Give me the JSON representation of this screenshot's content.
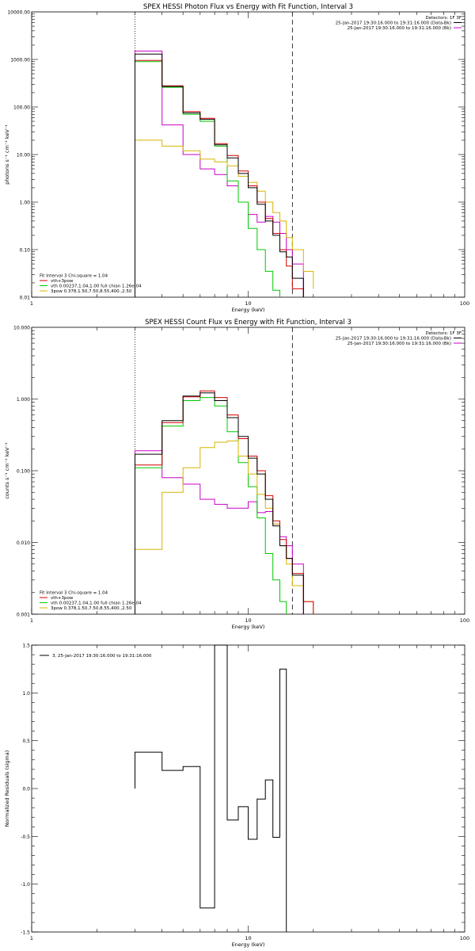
{
  "colors": {
    "data_black": "#000000",
    "total_red": "#d40000",
    "vth_green": "#00c800",
    "pow_yellow": "#d8b400",
    "bk_magenta": "#c800c8"
  },
  "chart_data": [
    {
      "type": "line",
      "title": "SPEX HESSI Photon Flux vs Energy with Fit Function, Interval 3",
      "xlabel": "Energy (keV)",
      "ylabel": "photons s⁻¹ cm⁻² keV⁻¹",
      "xscale": "log",
      "yscale": "log",
      "xlim": [
        1,
        100
      ],
      "ylim": [
        0.01,
        10000
      ],
      "xticks": [
        1,
        10,
        100
      ],
      "xticklabels": [
        "1",
        "10",
        "100"
      ],
      "yticks": [
        0.01,
        0.1,
        1,
        10,
        100,
        1000,
        10000
      ],
      "yticklabels": [
        "0.01",
        "0.10",
        "1.00",
        "10.00",
        "100.00",
        "1000.00",
        "10000.00"
      ],
      "vlines": [
        {
          "x": 3.0,
          "style": "dotted"
        },
        {
          "x": 16.0,
          "style": "dashed"
        }
      ],
      "legend_tr": {
        "header": "Detectors: 1F 3F",
        "lines": [
          {
            "text": "25-Jan-2017 19:30:16.000 to 19:31:16.000 (Data-Bk)",
            "color": "#000000"
          },
          {
            "text": "25-Jan-2017 19:30:16.000 to 19:31:16.000 (Bk)",
            "color": "#c800c8"
          }
        ]
      },
      "legend_bl": {
        "header": "Fit Interval  3   Chi-square = 1.04",
        "lines": [
          {
            "text": "vth+3pow",
            "color": "#d40000"
          },
          {
            "text": "vth 0.00237,1.04,1.00  full chian 1.26e-04",
            "color": "#00c800"
          },
          {
            "text": "3pow 0.378,1.50,7.50,8.55,400.,2.50",
            "color": "#d8b400"
          }
        ]
      },
      "bin_edges": [
        3.0,
        4.0,
        5.0,
        6.0,
        7.0,
        8.0,
        9.0,
        10.0,
        11.0,
        12.0,
        13.0,
        14.0,
        15.0,
        16.0,
        18.0,
        20.0
      ],
      "series": [
        {
          "key": "bk",
          "color": "#c800c8",
          "values": [
            1500,
            42,
            10,
            5.0,
            3.8,
            2.2,
            1.0,
            0.55,
            0.38,
            0.5,
            0.38,
            0.22,
            0.1,
            0.05,
            null
          ]
        },
        {
          "key": "vth",
          "color": "#00c800",
          "values": [
            900,
            260,
            70,
            50,
            15,
            2.8,
            1.0,
            0.28,
            0.1,
            0.035,
            0.014,
            null,
            null,
            null,
            null
          ]
        },
        {
          "key": "pow",
          "color": "#d8b400",
          "values": [
            20,
            15,
            12,
            8.0,
            7.0,
            5.8,
            3.5,
            2.6,
            1.7,
            1.0,
            0.6,
            0.4,
            0.18,
            0.1,
            0.035,
            0.015
          ]
        },
        {
          "key": "total",
          "color": "#d40000",
          "values": [
            950,
            280,
            80,
            58,
            17,
            9.5,
            4.5,
            2.2,
            1.0,
            0.45,
            0.22,
            0.1,
            0.045,
            0.015,
            null
          ]
        },
        {
          "key": "data",
          "color": "#000000",
          "values": [
            1300,
            270,
            75,
            55,
            16,
            8.5,
            4.0,
            2.0,
            0.9,
            0.4,
            0.2,
            0.09,
            0.07,
            0.025,
            null
          ]
        }
      ]
    },
    {
      "type": "line",
      "title": "SPEX HESSI Count Flux vs Energy with Fit Function, Interval 3",
      "xlabel": "Energy (keV)",
      "ylabel": "counts s⁻¹ cm⁻² keV⁻¹",
      "xscale": "log",
      "yscale": "log",
      "xlim": [
        1,
        100
      ],
      "ylim": [
        0.001,
        10
      ],
      "xticks": [
        1,
        10,
        100
      ],
      "xticklabels": [
        "1",
        "10",
        "100"
      ],
      "yticks": [
        0.001,
        0.01,
        0.1,
        1,
        10
      ],
      "yticklabels": [
        "0.001",
        "0.010",
        "0.100",
        "1.000",
        "10.000"
      ],
      "vlines": [
        {
          "x": 3.0,
          "style": "dotted"
        },
        {
          "x": 16.0,
          "style": "dashed"
        }
      ],
      "legend_tr": {
        "header": "Detectors: 1F 3F",
        "lines": [
          {
            "text": "25-Jan-2017 19:30:16.000 to 19:31:16.000 (Data-Bk)",
            "color": "#000000"
          },
          {
            "text": "25-Jan-2017 19:30:16.000 to 19:31:16.000 (Bk)",
            "color": "#c800c8"
          }
        ]
      },
      "legend_bl": {
        "header": "Fit Interval  3   Chi-square = 1.04",
        "lines": [
          {
            "text": "vth+3pow",
            "color": "#d40000"
          },
          {
            "text": "vth 0.00237,1.04,1.00  full chian 1.26e-04",
            "color": "#00c800"
          },
          {
            "text": "3pow 0.378,1.50,7.50,8.55,400.,2.50",
            "color": "#d8b400"
          }
        ]
      },
      "bin_edges": [
        3.0,
        4.0,
        5.0,
        6.0,
        7.0,
        8.0,
        9.0,
        10.0,
        11.0,
        12.0,
        13.0,
        14.0,
        15.0,
        16.0,
        18.0,
        20.0
      ],
      "series": [
        {
          "key": "bk",
          "color": "#c800c8",
          "values": [
            0.19,
            0.08,
            0.065,
            0.04,
            0.034,
            0.03,
            0.03,
            0.037,
            0.026,
            0.027,
            0.018,
            0.012,
            0.009,
            0.005,
            null
          ]
        },
        {
          "key": "vth",
          "color": "#00c800",
          "values": [
            0.11,
            0.42,
            0.95,
            1.05,
            0.8,
            0.35,
            0.13,
            0.06,
            0.022,
            0.007,
            0.003,
            0.0015,
            null,
            null,
            null
          ]
        },
        {
          "key": "pow",
          "color": "#d8b400",
          "values": [
            0.008,
            0.05,
            0.11,
            0.21,
            0.25,
            0.26,
            0.16,
            0.09,
            0.047,
            0.03,
            0.018,
            0.009,
            0.005,
            0.0025,
            0.0015
          ]
        },
        {
          "key": "total",
          "color": "#d40000",
          "values": [
            0.12,
            0.47,
            1.07,
            1.3,
            1.05,
            0.6,
            0.28,
            0.16,
            0.1,
            0.045,
            0.02,
            0.011,
            0.006,
            0.0037,
            0.0015
          ]
        },
        {
          "key": "data",
          "color": "#000000",
          "values": [
            0.17,
            0.5,
            1.1,
            1.22,
            0.95,
            0.55,
            0.3,
            0.15,
            0.09,
            0.04,
            0.017,
            0.009,
            0.006,
            0.0035,
            null
          ]
        }
      ]
    },
    {
      "type": "line",
      "title": "",
      "xlabel": "Energy (keV)",
      "ylabel": "Normalized Residuals (sigma)",
      "xscale": "log",
      "yscale": "linear",
      "xlim": [
        1,
        100
      ],
      "ylim": [
        -1.5,
        1.5
      ],
      "xticks": [
        1,
        10,
        100
      ],
      "xticklabels": [
        "1",
        "10",
        "100"
      ],
      "yticks": [
        -1.5,
        -1.0,
        -0.5,
        0.0,
        0.5,
        1.0,
        1.5
      ],
      "yticklabels": [
        "-1.5",
        "-1.0",
        "-0.5",
        "0.0",
        "0.5",
        "1.0",
        "1.5"
      ],
      "legend_tl": {
        "lines": [
          {
            "text": "3, 25-Jan-2017 19:30:16.000 to 19:31:16.000",
            "color": "#000000"
          }
        ]
      },
      "bin_edges": [
        3.0,
        4.0,
        5.0,
        6.0,
        7.0,
        8.0,
        9.0,
        10.0,
        11.0,
        12.0,
        13.0,
        14.0,
        15.0,
        16.0
      ],
      "series": [
        {
          "key": "residuals",
          "color": "#000000",
          "values": [
            0.38,
            0.19,
            0.23,
            -1.25,
            1.5,
            -0.33,
            -0.19,
            -0.53,
            -0.11,
            0.09,
            -0.51,
            1.25,
            null
          ]
        }
      ]
    }
  ]
}
